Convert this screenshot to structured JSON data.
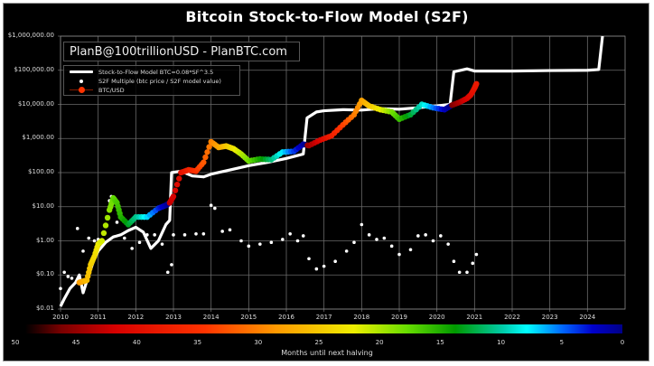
{
  "title": "Bitcoin Stock-to-Flow Model (S2F)",
  "watermark": "PlanB@100trillionUSD - PlanBTC.com",
  "legend": [
    {
      "label": "Stock-to-Flow Model BTC=0.08*SF^3.5",
      "style": "line",
      "color": "#ffffff"
    },
    {
      "label": "S2F Multiple (btc price / S2F model value)",
      "style": "dot",
      "color": "#ffffff"
    },
    {
      "label": "BTC/USD",
      "style": "dot-line",
      "color": "#ff3300"
    }
  ],
  "y_ticks": [
    "$1,000,000.00",
    "$100,000.00",
    "$10,000.00",
    "$1,000.00",
    "$100.00",
    "$10.00",
    "$1.00",
    "$0.10",
    "$0.01"
  ],
  "x_ticks": [
    "2010",
    "2011",
    "2012",
    "2013",
    "2014",
    "2015",
    "2016",
    "2017",
    "2018",
    "2019",
    "2020",
    "2021",
    "2022",
    "2023",
    "2024"
  ],
  "colorbar": {
    "label": "Months until next halving",
    "ticks": [
      "50",
      "45",
      "40",
      "35",
      "30",
      "25",
      "20",
      "15",
      "10",
      "5",
      "0"
    ]
  },
  "chart_data": {
    "type": "scatter",
    "title": "Bitcoin Stock-to-Flow Model (S2F)",
    "xlabel": "",
    "ylabel": "",
    "yscale": "log",
    "ylim": [
      0.01,
      1000000
    ],
    "xlim": [
      2010,
      2025
    ],
    "grid": true,
    "legend_position": "upper left",
    "colorbar": {
      "label": "Months until next halving",
      "range": [
        50,
        0
      ],
      "colormap": "jet-like (dark red → red → orange → yellow → green → cyan → blue → dark blue)"
    },
    "series": [
      {
        "name": "Stock-to-Flow Model BTC=0.08*SF^3.5",
        "type": "line",
        "color": "#ffffff",
        "points": [
          [
            2010.0,
            0.012
          ],
          [
            2010.1,
            0.02
          ],
          [
            2010.25,
            0.04
          ],
          [
            2010.4,
            0.06
          ],
          [
            2010.5,
            0.1
          ],
          [
            2010.6,
            0.03
          ],
          [
            2010.75,
            0.1
          ],
          [
            2010.9,
            0.3
          ],
          [
            2011.0,
            0.5
          ],
          [
            2011.2,
            0.9
          ],
          [
            2011.4,
            1.3
          ],
          [
            2011.6,
            1.5
          ],
          [
            2011.8,
            2.0
          ],
          [
            2012.0,
            2.5
          ],
          [
            2012.2,
            1.8
          ],
          [
            2012.4,
            0.6
          ],
          [
            2012.6,
            1.0
          ],
          [
            2012.8,
            3.0
          ],
          [
            2012.9,
            4.0
          ],
          [
            2012.95,
            100
          ],
          [
            2013.2,
            110
          ],
          [
            2013.5,
            80
          ],
          [
            2013.8,
            75
          ],
          [
            2014.0,
            90
          ],
          [
            2014.5,
            120
          ],
          [
            2015.0,
            160
          ],
          [
            2015.5,
            200
          ],
          [
            2016.0,
            260
          ],
          [
            2016.45,
            350
          ],
          [
            2016.55,
            4000
          ],
          [
            2016.8,
            6000
          ],
          [
            2017.0,
            6500
          ],
          [
            2017.5,
            7000
          ],
          [
            2018.0,
            6800
          ],
          [
            2018.5,
            7500
          ],
          [
            2019.0,
            7200
          ],
          [
            2019.5,
            8000
          ],
          [
            2020.0,
            9000
          ],
          [
            2020.35,
            10000
          ],
          [
            2020.45,
            90000
          ],
          [
            2020.8,
            110000
          ],
          [
            2021.0,
            95000
          ],
          [
            2022.0,
            95000
          ],
          [
            2023.0,
            98000
          ],
          [
            2024.0,
            100000
          ],
          [
            2024.3,
            105000
          ],
          [
            2024.4,
            1000000
          ]
        ]
      },
      {
        "name": "BTC/USD",
        "type": "scatter",
        "color_by": "months until next halving",
        "points": [
          [
            2010.5,
            0.06
          ],
          [
            2010.6,
            0.065
          ],
          [
            2010.7,
            0.07
          ],
          [
            2010.8,
            0.2
          ],
          [
            2010.9,
            0.35
          ],
          [
            2011.0,
            0.8
          ],
          [
            2011.1,
            1.0
          ],
          [
            2011.3,
            8.0
          ],
          [
            2011.4,
            18
          ],
          [
            2011.5,
            13
          ],
          [
            2011.6,
            5
          ],
          [
            2011.8,
            3
          ],
          [
            2012.0,
            5
          ],
          [
            2012.3,
            5
          ],
          [
            2012.6,
            9
          ],
          [
            2012.8,
            11
          ],
          [
            2012.9,
            13
          ],
          [
            2013.0,
            20
          ],
          [
            2013.2,
            100
          ],
          [
            2013.4,
            120
          ],
          [
            2013.6,
            110
          ],
          [
            2013.8,
            200
          ],
          [
            2014.0,
            800
          ],
          [
            2014.2,
            550
          ],
          [
            2014.4,
            600
          ],
          [
            2014.6,
            500
          ],
          [
            2014.8,
            350
          ],
          [
            2015.0,
            220
          ],
          [
            2015.3,
            250
          ],
          [
            2015.6,
            240
          ],
          [
            2015.9,
            400
          ],
          [
            2016.2,
            420
          ],
          [
            2016.45,
            680
          ],
          [
            2016.6,
            620
          ],
          [
            2016.9,
            900
          ],
          [
            2017.2,
            1200
          ],
          [
            2017.5,
            2500
          ],
          [
            2017.8,
            5000
          ],
          [
            2018.0,
            13000
          ],
          [
            2018.2,
            9000
          ],
          [
            2018.5,
            7000
          ],
          [
            2018.8,
            6000
          ],
          [
            2019.0,
            3700
          ],
          [
            2019.3,
            5000
          ],
          [
            2019.6,
            10000
          ],
          [
            2019.9,
            8000
          ],
          [
            2020.2,
            7000
          ],
          [
            2020.4,
            9500
          ],
          [
            2020.6,
            11500
          ],
          [
            2020.8,
            15000
          ],
          [
            2020.9,
            19000
          ],
          [
            2021.0,
            30000
          ],
          [
            2021.05,
            40000
          ]
        ]
      },
      {
        "name": "S2F Multiple (btc price / S2F model value)",
        "type": "scatter",
        "color": "#ffffff",
        "points": [
          [
            2010.0,
            0.04
          ],
          [
            2010.1,
            0.12
          ],
          [
            2010.2,
            0.09
          ],
          [
            2010.3,
            0.08
          ],
          [
            2010.45,
            2.3
          ],
          [
            2010.6,
            0.5
          ],
          [
            2010.75,
            1.2
          ],
          [
            2010.9,
            1.0
          ],
          [
            2011.0,
            1.1
          ],
          [
            2011.3,
            15
          ],
          [
            2011.35,
            20
          ],
          [
            2011.5,
            3.5
          ],
          [
            2011.7,
            1.2
          ],
          [
            2011.9,
            0.6
          ],
          [
            2012.1,
            0.9
          ],
          [
            2012.3,
            1.5
          ],
          [
            2012.5,
            1.5
          ],
          [
            2012.7,
            0.8
          ],
          [
            2012.85,
            0.12
          ],
          [
            2012.95,
            0.2
          ],
          [
            2013.0,
            1.5
          ],
          [
            2013.3,
            1.5
          ],
          [
            2013.6,
            1.6
          ],
          [
            2013.8,
            1.6
          ],
          [
            2014.0,
            11
          ],
          [
            2014.1,
            9
          ],
          [
            2014.3,
            1.9
          ],
          [
            2014.5,
            2.1
          ],
          [
            2014.8,
            1.0
          ],
          [
            2015.0,
            0.7
          ],
          [
            2015.3,
            0.8
          ],
          [
            2015.6,
            0.9
          ],
          [
            2015.9,
            1.1
          ],
          [
            2016.1,
            1.6
          ],
          [
            2016.3,
            1.0
          ],
          [
            2016.45,
            1.4
          ],
          [
            2016.6,
            0.3
          ],
          [
            2016.8,
            0.15
          ],
          [
            2017.0,
            0.18
          ],
          [
            2017.3,
            0.25
          ],
          [
            2017.6,
            0.5
          ],
          [
            2017.8,
            0.9
          ],
          [
            2018.0,
            3.0
          ],
          [
            2018.2,
            1.5
          ],
          [
            2018.4,
            1.1
          ],
          [
            2018.6,
            1.2
          ],
          [
            2018.8,
            0.7
          ],
          [
            2019.0,
            0.4
          ],
          [
            2019.3,
            0.55
          ],
          [
            2019.5,
            1.4
          ],
          [
            2019.7,
            1.5
          ],
          [
            2019.9,
            1.0
          ],
          [
            2020.1,
            1.4
          ],
          [
            2020.3,
            0.8
          ],
          [
            2020.45,
            0.25
          ],
          [
            2020.6,
            0.12
          ],
          [
            2020.8,
            0.12
          ],
          [
            2020.95,
            0.22
          ],
          [
            2021.05,
            0.4
          ]
        ]
      }
    ]
  }
}
